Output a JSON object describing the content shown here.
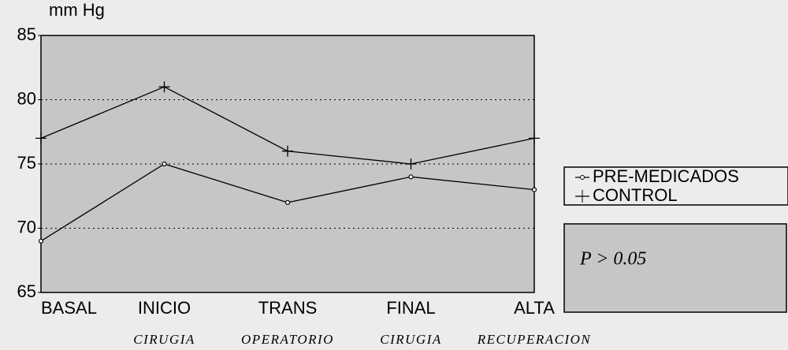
{
  "chart_data": {
    "type": "line",
    "y_label": "mm Hg",
    "categories": [
      "BASAL",
      "INICIO",
      "TRANS",
      "FINAL",
      "ALTA"
    ],
    "category_sublabels": [
      null,
      "CIRUGIA",
      "OPERATORIO",
      "CIRUGIA",
      "RECUPERACION"
    ],
    "series": [
      {
        "name": "PRE-MEDICADOS",
        "color": "#000000",
        "marker": "circle",
        "values": [
          69,
          75,
          72,
          74,
          73
        ]
      },
      {
        "name": "CONTROL",
        "color": "#000000",
        "marker": "plus",
        "values": [
          77,
          81,
          76,
          75,
          77
        ]
      }
    ],
    "ylim": [
      65,
      85
    ],
    "yticks": [
      65,
      70,
      75,
      80,
      85
    ],
    "grid": true,
    "annotation": "P > 0.05"
  }
}
